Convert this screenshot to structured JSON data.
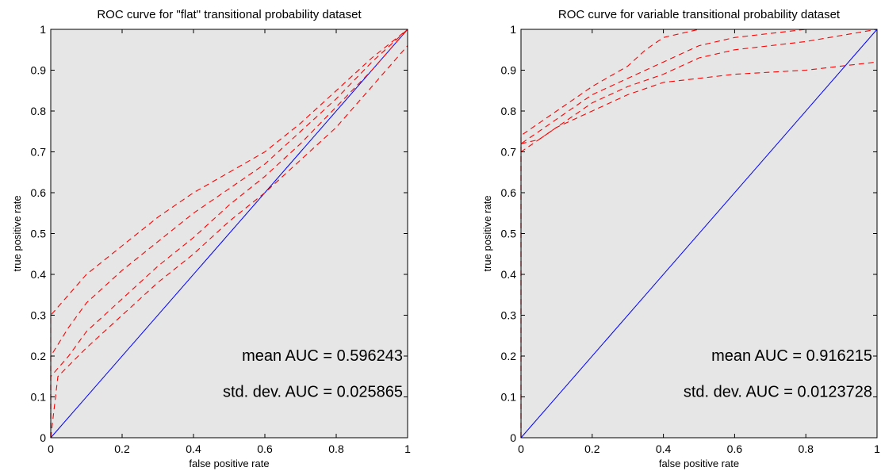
{
  "chart_data": [
    {
      "type": "line",
      "title": "ROC curve for \"flat\" transitional probability dataset",
      "xlabel": "false positive rate",
      "ylabel": "true positive rate",
      "xlim": [
        0,
        1
      ],
      "ylim": [
        0,
        1
      ],
      "xticks": [
        "0",
        "0.2",
        "0.4",
        "0.6",
        "0.8",
        "1"
      ],
      "yticks": [
        "0",
        "0.1",
        "0.2",
        "0.3",
        "0.4",
        "0.5",
        "0.6",
        "0.7",
        "0.8",
        "0.9",
        "1"
      ],
      "grid": false,
      "background_color": "#e6e6e6",
      "annotations": [
        "mean AUC =   0.596243",
        "std. dev. AUC = 0.025865"
      ],
      "series": [
        {
          "style": "solid",
          "color": "#0000ff",
          "x": [
            0,
            1
          ],
          "y": [
            0,
            1
          ]
        },
        {
          "style": "dashed",
          "color": "#ff0000",
          "x": [
            0,
            0,
            0.05,
            0.1,
            0.2,
            0.3,
            0.4,
            0.5,
            0.6,
            0.7,
            0.8,
            0.9,
            1
          ],
          "y": [
            0,
            0.3,
            0.35,
            0.4,
            0.47,
            0.54,
            0.6,
            0.65,
            0.7,
            0.77,
            0.85,
            0.93,
            1
          ]
        },
        {
          "style": "dashed",
          "color": "#ff0000",
          "x": [
            0,
            0,
            0.05,
            0.1,
            0.2,
            0.3,
            0.4,
            0.5,
            0.6,
            0.7,
            0.8,
            0.9,
            1
          ],
          "y": [
            0,
            0.2,
            0.27,
            0.33,
            0.41,
            0.48,
            0.55,
            0.61,
            0.67,
            0.75,
            0.83,
            0.92,
            1
          ]
        },
        {
          "style": "dashed",
          "color": "#ff0000",
          "x": [
            0,
            0,
            0.05,
            0.1,
            0.2,
            0.3,
            0.4,
            0.5,
            0.6,
            0.7,
            0.8,
            0.9,
            1
          ],
          "y": [
            0,
            0.15,
            0.2,
            0.26,
            0.34,
            0.42,
            0.49,
            0.57,
            0.64,
            0.72,
            0.81,
            0.9,
            1
          ]
        },
        {
          "style": "dashed",
          "color": "#ff0000",
          "x": [
            0,
            0.02,
            0.1,
            0.2,
            0.3,
            0.4,
            0.5,
            0.6,
            0.7,
            0.8,
            0.9,
            1
          ],
          "y": [
            0,
            0.15,
            0.22,
            0.3,
            0.38,
            0.45,
            0.53,
            0.6,
            0.68,
            0.76,
            0.86,
            0.96
          ]
        }
      ]
    },
    {
      "type": "line",
      "title": "ROC curve for variable transitional probability dataset",
      "xlabel": "false positive rate",
      "ylabel": "true positive rate",
      "xlim": [
        0,
        1
      ],
      "ylim": [
        0,
        1
      ],
      "xticks": [
        "0",
        "0.2",
        "0.4",
        "0.6",
        "0.8",
        "1"
      ],
      "yticks": [
        "0",
        "0.1",
        "0.2",
        "0.3",
        "0.4",
        "0.5",
        "0.6",
        "0.7",
        "0.8",
        "0.9",
        "1"
      ],
      "grid": false,
      "background_color": "#e6e6e6",
      "annotations": [
        "mean AUC =   0.916215",
        "std. dev. AUC = 0.0123728"
      ],
      "series": [
        {
          "style": "solid",
          "color": "#0000ff",
          "x": [
            0,
            1
          ],
          "y": [
            0,
            1
          ]
        },
        {
          "style": "dashed",
          "color": "#ff0000",
          "x": [
            0,
            0,
            0.05,
            0.1,
            0.15,
            0.2,
            0.3,
            0.35,
            0.4,
            0.5,
            0.6,
            0.8,
            1
          ],
          "y": [
            0,
            0.74,
            0.77,
            0.8,
            0.83,
            0.86,
            0.91,
            0.95,
            0.98,
            1,
            1,
            1,
            1
          ]
        },
        {
          "style": "dashed",
          "color": "#ff0000",
          "x": [
            0,
            0,
            0.05,
            0.1,
            0.15,
            0.2,
            0.3,
            0.4,
            0.5,
            0.6,
            0.8,
            1
          ],
          "y": [
            0,
            0.72,
            0.75,
            0.78,
            0.81,
            0.84,
            0.88,
            0.92,
            0.96,
            0.98,
            1,
            1
          ]
        },
        {
          "style": "dashed",
          "color": "#ff0000",
          "x": [
            0,
            0,
            0.05,
            0.1,
            0.15,
            0.2,
            0.3,
            0.4,
            0.5,
            0.6,
            0.8,
            1
          ],
          "y": [
            0,
            0.7,
            0.73,
            0.76,
            0.79,
            0.82,
            0.86,
            0.89,
            0.93,
            0.95,
            0.97,
            1
          ]
        },
        {
          "style": "dashed",
          "color": "#ff0000",
          "x": [
            0,
            0.05,
            0.1,
            0.2,
            0.3,
            0.4,
            0.5,
            0.6,
            0.8,
            1
          ],
          "y": [
            0.72,
            0.73,
            0.76,
            0.8,
            0.84,
            0.87,
            0.88,
            0.89,
            0.9,
            0.92
          ]
        }
      ]
    }
  ]
}
